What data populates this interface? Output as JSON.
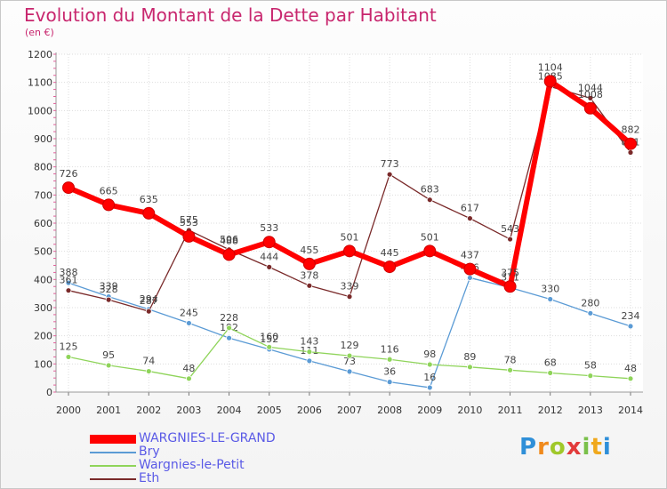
{
  "chart_data": {
    "type": "line",
    "title": "Evolution du Montant de la Dette par Habitant",
    "subtitle": "(en €)",
    "xlabel": "",
    "ylabel": "",
    "ylim": [
      0,
      1200
    ],
    "yticks": [
      0,
      100,
      200,
      300,
      400,
      500,
      600,
      700,
      800,
      900,
      1000,
      1100,
      1200
    ],
    "categories": [
      "2000",
      "2001",
      "2002",
      "2003",
      "2004",
      "2005",
      "2006",
      "2007",
      "2008",
      "2009",
      "2010",
      "2011",
      "2012",
      "2013",
      "2014"
    ],
    "grid": true,
    "legend_position": "bottom-left",
    "series": [
      {
        "name": "WARGNIES-LE-GRAND",
        "color": "#ff0000",
        "emphasis": true,
        "values": [
          726,
          665,
          635,
          553,
          488,
          533,
          455,
          501,
          445,
          501,
          437,
          375,
          1104,
          1008,
          882
        ]
      },
      {
        "name": "Bry",
        "color": "#5b9bd5",
        "values": [
          388,
          339,
          294,
          245,
          192,
          152,
          111,
          73,
          36,
          16,
          406,
          371,
          330,
          280,
          234
        ]
      },
      {
        "name": "Wargnies-le-Petit",
        "color": "#8fd45a",
        "values": [
          125,
          95,
          74,
          48,
          228,
          160,
          143,
          129,
          116,
          98,
          89,
          78,
          68,
          58,
          48
        ]
      },
      {
        "name": "Eth",
        "color": "#7a2a2a",
        "values": [
          361,
          328,
          287,
          575,
          506,
          444,
          378,
          339,
          773,
          683,
          617,
          543,
          1085,
          1044,
          851
        ]
      }
    ]
  },
  "logo": {
    "letters": [
      "P",
      "r",
      "o",
      "x",
      "i",
      "t",
      "i"
    ]
  }
}
